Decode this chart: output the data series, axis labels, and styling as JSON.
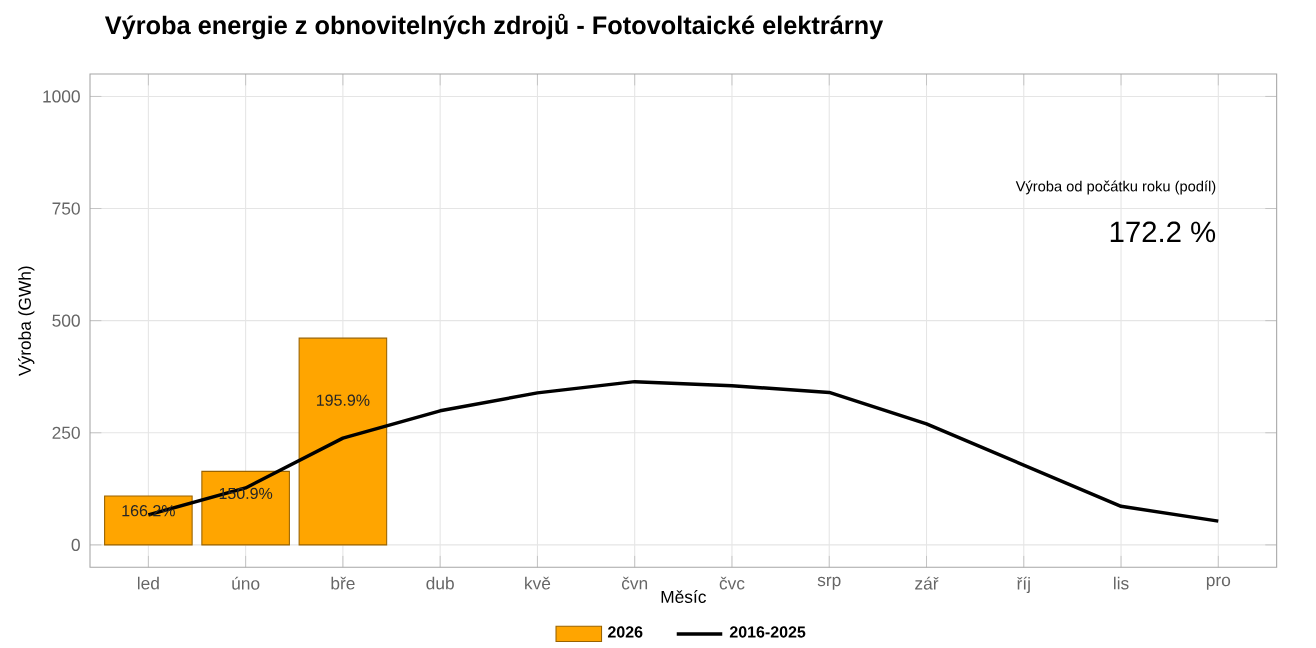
{
  "chart_data": {
    "type": "bar",
    "title": "Výroba energie z obnovitelných zdrojů - Fotovoltaické elektrárny",
    "xlabel": "Měsíc",
    "ylabel": "Výroba (GWh)",
    "categories": [
      "led",
      "úno",
      "bře",
      "dub",
      "kvě",
      "čvn",
      "čvc",
      "srp",
      "zář",
      "říj",
      "lis",
      "pro"
    ],
    "series": [
      {
        "name": "2026",
        "color": "#ffa500",
        "values": [
          109,
          164,
          461,
          null,
          null,
          null,
          null,
          null,
          null,
          null,
          null,
          null
        ]
      },
      {
        "name": "2016-2025",
        "type": "line",
        "color": "#000000",
        "values": [
          67,
          127,
          238,
          299,
          339,
          364,
          355,
          340,
          270,
          178,
          86,
          53
        ]
      }
    ],
    "ylim": [
      -50,
      1050
    ],
    "yticks": [
      0,
      250,
      500,
      750,
      1000
    ],
    "grid": true,
    "legend": "bottom",
    "annotations": [
      "Výroba od počátku roku (podíl)",
      "172.2 %",
      "166.2%",
      "150.9%",
      "195.9%"
    ]
  }
}
